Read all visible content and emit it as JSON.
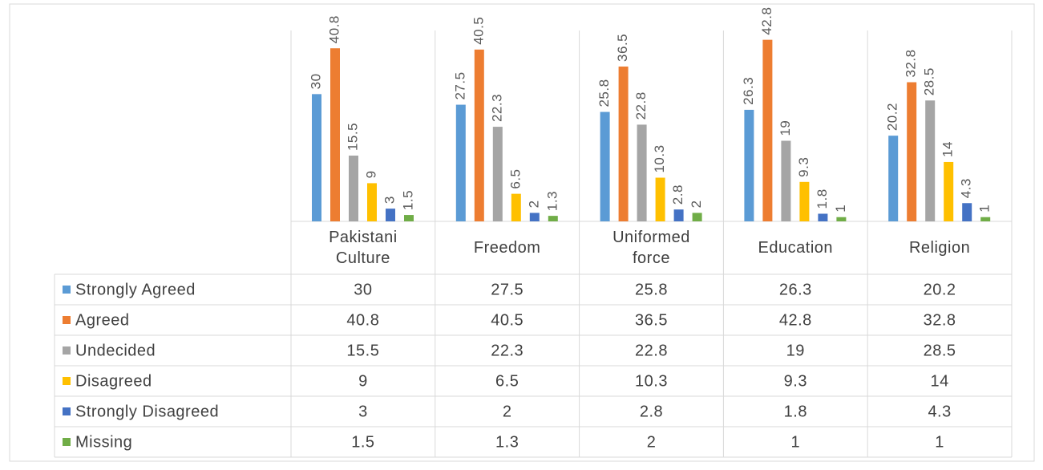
{
  "chart_data": {
    "type": "bar",
    "categories": [
      "Pakistani Culture",
      "Freedom",
      "Uniformed force",
      "Education",
      "Religion"
    ],
    "series": [
      {
        "name": "Strongly Agreed",
        "color": "#5b9bd5",
        "values": [
          30,
          27.5,
          25.8,
          26.3,
          20.2
        ]
      },
      {
        "name": "Agreed",
        "color": "#ed7d31",
        "values": [
          40.8,
          40.5,
          36.5,
          42.8,
          32.8
        ]
      },
      {
        "name": "Undecided",
        "color": "#a5a5a5",
        "values": [
          15.5,
          22.3,
          22.8,
          19,
          28.5
        ]
      },
      {
        "name": "Disagreed",
        "color": "#ffc000",
        "values": [
          9,
          6.5,
          10.3,
          9.3,
          14
        ]
      },
      {
        "name": "Strongly Disagreed",
        "color": "#4472c4",
        "values": [
          3,
          2,
          2.8,
          1.8,
          4.3
        ]
      },
      {
        "name": "Missing",
        "color": "#70ad47",
        "values": [
          1.5,
          1.3,
          2,
          1,
          1
        ]
      }
    ],
    "ylim": [
      0,
      45
    ]
  }
}
